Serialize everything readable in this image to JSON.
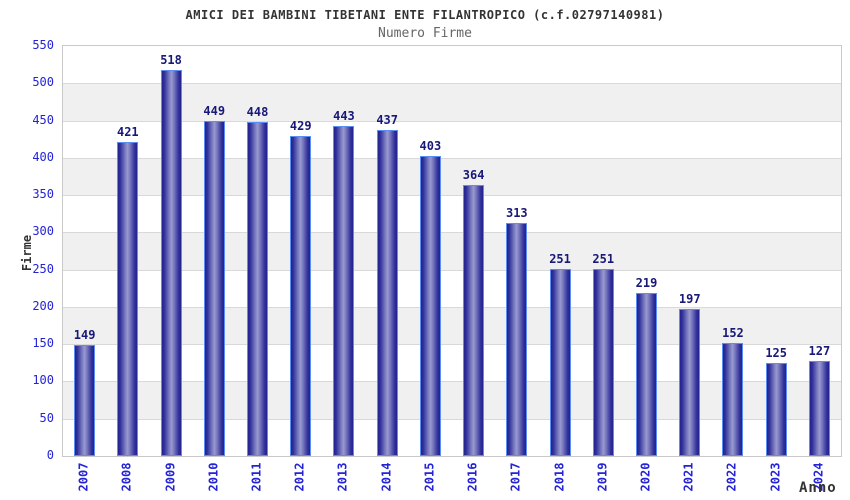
{
  "header": {
    "title": "AMICI DEI BAMBINI TIBETANI ENTE FILANTROPICO (c.f.02797140981)",
    "subtitle": "Numero Firme"
  },
  "chart_data": {
    "type": "bar",
    "title": "AMICI DEI BAMBINI TIBETANI ENTE FILANTROPICO (c.f.02797140981)",
    "subtitle": "Numero Firme",
    "xlabel": "Anno",
    "ylabel": "Firme",
    "categories": [
      "2007",
      "2008",
      "2009",
      "2010",
      "2011",
      "2012",
      "2013",
      "2014",
      "2015",
      "2016",
      "2017",
      "2018",
      "2019",
      "2020",
      "2021",
      "2022",
      "2023",
      "2024"
    ],
    "values": [
      149,
      421,
      518,
      449,
      448,
      429,
      443,
      437,
      403,
      364,
      313,
      251,
      251,
      219,
      197,
      152,
      125,
      127
    ],
    "ylim": [
      0,
      550
    ],
    "ytick_step": 50,
    "grid": true,
    "legend": "none",
    "band_pattern": "alternating horizontal 50-unit bands, white and light gray",
    "colors": {
      "bar_edge": "#23238f",
      "bar_mid": "#9a9ad0",
      "bar_border": "#5c8df2",
      "value_label": "#181878",
      "tick_label_blue": "#2424d6",
      "band_gray": "#f0f0f0",
      "gridline": "#d9d9d9",
      "plot_border": "#c9c9c9",
      "title_color": "#333333",
      "subtitle_color": "#666666",
      "axis_title_color": "#333333"
    }
  }
}
